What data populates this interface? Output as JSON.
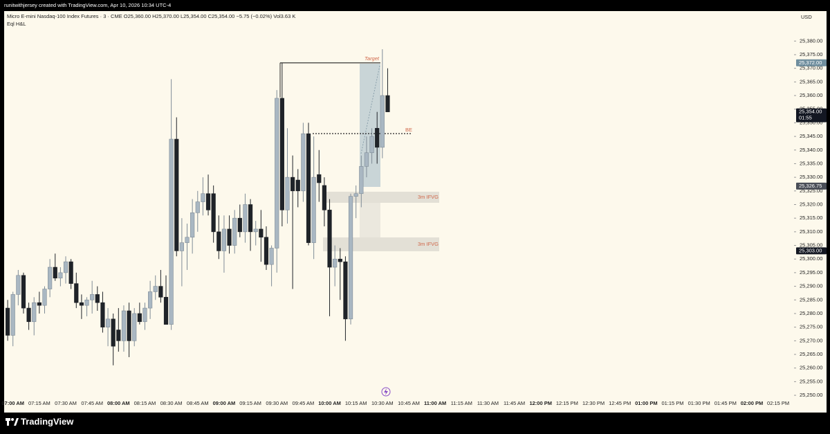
{
  "credit": "runitwithjersey created with TradingView.com, Apr 10, 2026 10:34 UTC-4",
  "brand": "TradingView",
  "chart_data": {
    "type": "candlestick",
    "title": "Micro E-mini Nasdaq-100 Index Futures · 3 · CME  O25,360.00  H25,370.00  L25,354.00  C25,354.00  −5.75 (−0.02%)  Vol3.63 K",
    "subtitle": "Eql H&L",
    "y_axis_label": "USD",
    "up_color": "#a9b7c2",
    "down_color": "#1f2328",
    "x": [
      417,
      420,
      423,
      426,
      429,
      432,
      435,
      438,
      441,
      444,
      447,
      450,
      453,
      456,
      459,
      462,
      465,
      468,
      471,
      474,
      477,
      480,
      483,
      486,
      489,
      492,
      495,
      498,
      501,
      504,
      507,
      510,
      513,
      516,
      519,
      522,
      525,
      528,
      531,
      534,
      537,
      540,
      543,
      546,
      549,
      552,
      555,
      558,
      561,
      564,
      567,
      570,
      573,
      576,
      579,
      582,
      585,
      588,
      591,
      594,
      597,
      600,
      603,
      606,
      609,
      612,
      615,
      618,
      621,
      624,
      627,
      630,
      633
    ],
    "open": [
      25282,
      25272,
      25287,
      25294,
      25282,
      25277,
      25284,
      25283,
      25289,
      25297,
      25293,
      25295,
      25299,
      25291,
      25284,
      25283,
      25285,
      25287,
      25284,
      25275,
      25278,
      25274,
      25270,
      25281,
      25270,
      25280,
      25277,
      25282,
      25288,
      25290,
      25286,
      25276,
      25344,
      25303,
      25306,
      25308,
      25317,
      25321,
      25324,
      25324,
      25310,
      25303,
      25311,
      25305,
      25315,
      25310,
      25320,
      25310,
      25311,
      25308,
      25298,
      25304,
      25359,
      25318,
      25330,
      25329,
      25325,
      25346,
      25306,
      25331,
      25327,
      25318,
      25297,
      25300,
      25299,
      25278,
      25323,
      25324,
      25334,
      25339,
      25348,
      25341,
      25360
    ],
    "high": [
      25285,
      25288,
      25296,
      25295,
      25284,
      25286,
      25288,
      25290,
      25300,
      25302,
      25297,
      25301,
      25300,
      25295,
      25287,
      25286,
      25292,
      25290,
      25288,
      25282,
      25280,
      25282,
      25283,
      25284,
      25282,
      25284,
      25284,
      25292,
      25294,
      25296,
      25294,
      25366,
      25352,
      25315,
      25313,
      25322,
      25325,
      25330,
      25331,
      25327,
      25316,
      25316,
      25316,
      25318,
      25320,
      25324,
      25322,
      25314,
      25318,
      25312,
      25305,
      25362,
      25372,
      25348,
      25338,
      25333,
      25350,
      25350,
      25345,
      25340,
      25330,
      25322,
      25305,
      25304,
      25301,
      25324,
      25327,
      25338,
      25345,
      25348,
      25354,
      25377,
      25370
    ],
    "low": [
      25270,
      25268,
      25283,
      25280,
      25274,
      25272,
      25280,
      25280,
      25286,
      25292,
      25290,
      25291,
      25289,
      25282,
      25278,
      25279,
      25280,
      25281,
      25273,
      25268,
      25261,
      25266,
      25266,
      25264,
      25268,
      25276,
      25274,
      25278,
      25285,
      25284,
      25276,
      25274,
      25301,
      25290,
      25296,
      25302,
      25310,
      25316,
      25316,
      25306,
      25300,
      25295,
      25302,
      25302,
      25308,
      25306,
      25303,
      25305,
      25299,
      25296,
      25290,
      25295,
      25312,
      25313,
      25289,
      25319,
      25321,
      25305,
      25300,
      25321,
      25312,
      25279,
      25290,
      25285,
      25270,
      25276,
      25315,
      25319,
      25330,
      25335,
      25335,
      25337,
      25354
    ],
    "close": [
      25272,
      25287,
      25294,
      25282,
      25277,
      25284,
      25283,
      25289,
      25297,
      25293,
      25295,
      25299,
      25291,
      25284,
      25283,
      25285,
      25287,
      25284,
      25275,
      25278,
      25268,
      25270,
      25281,
      25270,
      25280,
      25277,
      25282,
      25288,
      25290,
      25286,
      25276,
      25344,
      25303,
      25306,
      25308,
      25317,
      25321,
      25324,
      25318,
      25310,
      25303,
      25311,
      25305,
      25315,
      25310,
      25320,
      25310,
      25311,
      25308,
      25298,
      25304,
      25359,
      25318,
      25330,
      25325,
      25325,
      25346,
      25306,
      25330,
      25328,
      25318,
      25297,
      25300,
      25299,
      25278,
      25323,
      25324,
      25334,
      25339,
      25345,
      25341,
      25360,
      25354
    ],
    "xlim": [
      415,
      864
    ],
    "ylim": [
      25249,
      25391
    ],
    "xticks": [
      {
        "value": 420,
        "label": "07:00 AM"
      },
      {
        "value": 435,
        "label": "07:15 AM"
      },
      {
        "value": 450,
        "label": "07:30 AM"
      },
      {
        "value": 465,
        "label": "07:45 AM"
      },
      {
        "value": 480,
        "label": "08:00 AM"
      },
      {
        "value": 495,
        "label": "08:15 AM"
      },
      {
        "value": 510,
        "label": "08:30 AM"
      },
      {
        "value": 525,
        "label": "08:45 AM"
      },
      {
        "value": 540,
        "label": "09:00 AM"
      },
      {
        "value": 555,
        "label": "09:15 AM"
      },
      {
        "value": 570,
        "label": "09:30 AM"
      },
      {
        "value": 585,
        "label": "09:45 AM"
      },
      {
        "value": 600,
        "label": "10:00 AM"
      },
      {
        "value": 615,
        "label": "10:15 AM"
      },
      {
        "value": 630,
        "label": "10:30 AM"
      },
      {
        "value": 645,
        "label": "10:45 AM"
      },
      {
        "value": 660,
        "label": "11:00 AM"
      },
      {
        "value": 675,
        "label": "11:15 AM"
      },
      {
        "value": 690,
        "label": "11:30 AM"
      },
      {
        "value": 705,
        "label": "11:45 AM"
      },
      {
        "value": 720,
        "label": "12:00 PM"
      },
      {
        "value": 735,
        "label": "12:15 PM"
      },
      {
        "value": 750,
        "label": "12:30 PM"
      },
      {
        "value": 765,
        "label": "12:45 PM"
      },
      {
        "value": 780,
        "label": "01:00 PM"
      },
      {
        "value": 795,
        "label": "01:15 PM"
      },
      {
        "value": 810,
        "label": "01:30 PM"
      },
      {
        "value": 825,
        "label": "01:45 PM"
      },
      {
        "value": 840,
        "label": "02:00 PM"
      },
      {
        "value": 855,
        "label": "02:15 PM"
      }
    ],
    "yticks": [
      {
        "value": 25250,
        "label": "25,250.00"
      },
      {
        "value": 25255,
        "label": "25,255.00"
      },
      {
        "value": 25260,
        "label": "25,260.00"
      },
      {
        "value": 25265,
        "label": "25,265.00"
      },
      {
        "value": 25270,
        "label": "25,270.00"
      },
      {
        "value": 25275,
        "label": "25,275.00"
      },
      {
        "value": 25280,
        "label": "25,280.00"
      },
      {
        "value": 25285,
        "label": "25,285.00"
      },
      {
        "value": 25290,
        "label": "25,290.00"
      },
      {
        "value": 25295,
        "label": "25,295.00"
      },
      {
        "value": 25300,
        "label": "25,300.00"
      },
      {
        "value": 25305,
        "label": "25,305.00"
      },
      {
        "value": 25310,
        "label": "25,310.00"
      },
      {
        "value": 25315,
        "label": "25,315.00"
      },
      {
        "value": 25320,
        "label": "25,320.00"
      },
      {
        "value": 25325,
        "label": "25,325.00"
      },
      {
        "value": 25330,
        "label": "25,330.00"
      },
      {
        "value": 25335,
        "label": "25,335.00"
      },
      {
        "value": 25340,
        "label": "25,340.00"
      },
      {
        "value": 25345,
        "label": "25,345.00"
      },
      {
        "value": 25350,
        "label": "25,350.00"
      },
      {
        "value": 25355,
        "label": "25,355.00"
      },
      {
        "value": 25360,
        "label": "25,360.00"
      },
      {
        "value": 25365,
        "label": "25,365.00"
      },
      {
        "value": 25370,
        "label": "25,370.00"
      },
      {
        "value": 25375,
        "label": "25,375.00"
      },
      {
        "value": 25380,
        "label": "25,380.00"
      }
    ],
    "price_labels": [
      {
        "value": 25372,
        "label": "25,372.00",
        "color": "#6f8e9e"
      },
      {
        "value": 25354,
        "label": "25,354.00",
        "sub": "01:55",
        "color": "#131722"
      },
      {
        "value": 25326.75,
        "label": "25,326.75",
        "color": "#4a4e57"
      },
      {
        "value": 25303,
        "label": "25,303.00",
        "color": "#131722"
      }
    ],
    "annotations": [
      "Target",
      "BE",
      "3m IFVG",
      "3m IFVG"
    ]
  }
}
